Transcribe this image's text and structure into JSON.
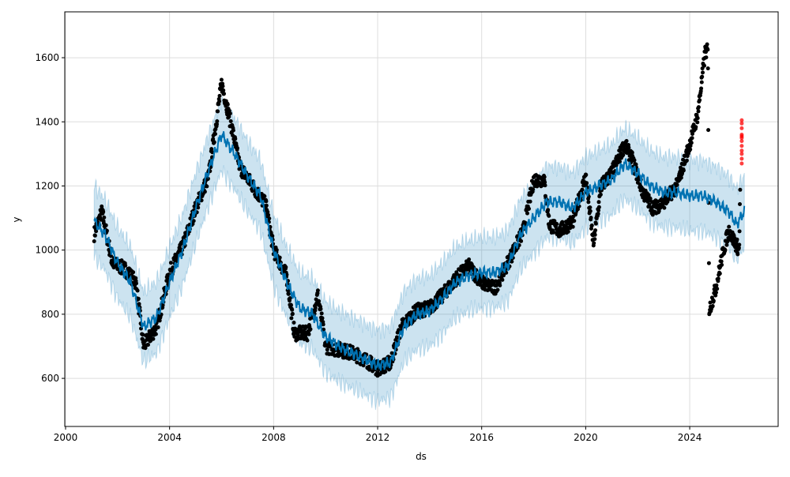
{
  "chart_data": {
    "type": "line",
    "title": "",
    "xlabel": "ds",
    "ylabel": "y",
    "xlim": [
      1999.97,
      2027.4
    ],
    "ylim": [
      450,
      1743
    ],
    "grid": true,
    "xticks": [
      2000,
      2004,
      2008,
      2012,
      2016,
      2020,
      2024
    ],
    "xtick_labels": [
      "2000",
      "2004",
      "2008",
      "2012",
      "2016",
      "2020",
      "2024"
    ],
    "yticks": [
      600,
      800,
      1000,
      1200,
      1400,
      1600
    ],
    "ytick_labels": [
      "600",
      "800",
      "1000",
      "1200",
      "1400",
      "1600"
    ],
    "colors": {
      "forecast": "#0072B2",
      "band": "#0072B2",
      "actual": "#000000",
      "test": "#ff0000"
    },
    "forecast_yhat": [
      [
        2001.1,
        1090
      ],
      [
        2001.5,
        1050
      ],
      [
        2002,
        960
      ],
      [
        2002.5,
        900
      ],
      [
        2003,
        760
      ],
      [
        2003.5,
        790
      ],
      [
        2004,
        900
      ],
      [
        2004.5,
        1000
      ],
      [
        2005,
        1130
      ],
      [
        2005.5,
        1250
      ],
      [
        2006,
        1360
      ],
      [
        2006.5,
        1300
      ],
      [
        2007,
        1230
      ],
      [
        2007.5,
        1170
      ],
      [
        2008,
        1000
      ],
      [
        2008.5,
        900
      ],
      [
        2009,
        820
      ],
      [
        2009.5,
        800
      ],
      [
        2010,
        730
      ],
      [
        2010.5,
        700
      ],
      [
        2011,
        680
      ],
      [
        2011.5,
        660
      ],
      [
        2012,
        640
      ],
      [
        2012.5,
        650
      ],
      [
        2013,
        760
      ],
      [
        2013.5,
        800
      ],
      [
        2014,
        810
      ],
      [
        2014.5,
        850
      ],
      [
        2015,
        900
      ],
      [
        2015.5,
        920
      ],
      [
        2016,
        930
      ],
      [
        2016.5,
        930
      ],
      [
        2017,
        950
      ],
      [
        2017.5,
        1050
      ],
      [
        2018,
        1100
      ],
      [
        2018.5,
        1150
      ],
      [
        2019,
        1150
      ],
      [
        2019.5,
        1130
      ],
      [
        2020,
        1180
      ],
      [
        2020.5,
        1200
      ],
      [
        2021,
        1220
      ],
      [
        2021.5,
        1270
      ],
      [
        2022,
        1240
      ],
      [
        2022.5,
        1200
      ],
      [
        2023,
        1180
      ],
      [
        2023.5,
        1180
      ],
      [
        2024,
        1170
      ],
      [
        2024.5,
        1170
      ],
      [
        2025,
        1150
      ],
      [
        2025.5,
        1120
      ],
      [
        2025.8,
        1080
      ],
      [
        2026.1,
        1120
      ]
    ],
    "uncertainty_halfwidth": 110,
    "actual_y": [
      [
        2001.1,
        1050
      ],
      [
        2001.4,
        1120
      ],
      [
        2001.8,
        960
      ],
      [
        2002.3,
        940
      ],
      [
        2002.7,
        900
      ],
      [
        2003,
        700
      ],
      [
        2003.5,
        760
      ],
      [
        2004,
        930
      ],
      [
        2004.5,
        1010
      ],
      [
        2005,
        1130
      ],
      [
        2005.5,
        1230
      ],
      [
        2006,
        1520
      ],
      [
        2006.4,
        1380
      ],
      [
        2006.7,
        1260
      ],
      [
        2007.2,
        1200
      ],
      [
        2007.7,
        1140
      ],
      [
        2008,
        1000
      ],
      [
        2008.5,
        920
      ],
      [
        2008.8,
        740
      ],
      [
        2009.3,
        740
      ],
      [
        2009.7,
        860
      ],
      [
        2010,
        700
      ],
      [
        2010.5,
        690
      ],
      [
        2011,
        680
      ],
      [
        2011.5,
        660
      ],
      [
        2012,
        630
      ],
      [
        2012.5,
        650
      ],
      [
        2012.9,
        760
      ],
      [
        2013.5,
        810
      ],
      [
        2014,
        820
      ],
      [
        2014.5,
        860
      ],
      [
        2015,
        910
      ],
      [
        2015.5,
        950
      ],
      [
        2016,
        900
      ],
      [
        2016.5,
        880
      ],
      [
        2017,
        960
      ],
      [
        2017.6,
        1060
      ],
      [
        2018,
        1220
      ],
      [
        2018.4,
        1220
      ],
      [
        2018.6,
        1080
      ],
      [
        2019,
        1060
      ],
      [
        2019.5,
        1090
      ],
      [
        2020,
        1230
      ],
      [
        2020.3,
        1020
      ],
      [
        2020.6,
        1200
      ],
      [
        2021,
        1240
      ],
      [
        2021.5,
        1330
      ],
      [
        2021.8,
        1280
      ],
      [
        2022.2,
        1180
      ],
      [
        2022.6,
        1130
      ],
      [
        2023,
        1150
      ],
      [
        2023.5,
        1200
      ],
      [
        2024,
        1330
      ],
      [
        2024.3,
        1420
      ],
      [
        2024.6,
        1620
      ],
      [
        2024.7,
        1620
      ],
      [
        2024.75,
        810
      ],
      [
        2025,
        880
      ],
      [
        2025.3,
        1000
      ],
      [
        2025.5,
        1060
      ],
      [
        2025.7,
        1030
      ],
      [
        2025.9,
        1000
      ],
      [
        2025.95,
        1230
      ]
    ],
    "test_points": [
      [
        2026.0,
        1270
      ],
      [
        2026.0,
        1285
      ],
      [
        2026.0,
        1300
      ],
      [
        2026.0,
        1310
      ],
      [
        2026.0,
        1325
      ],
      [
        2026.0,
        1340
      ],
      [
        2026.0,
        1350
      ],
      [
        2026.0,
        1355
      ],
      [
        2026.0,
        1360
      ],
      [
        2026.0,
        1380
      ],
      [
        2026.0,
        1395
      ],
      [
        2026.0,
        1405
      ]
    ]
  }
}
